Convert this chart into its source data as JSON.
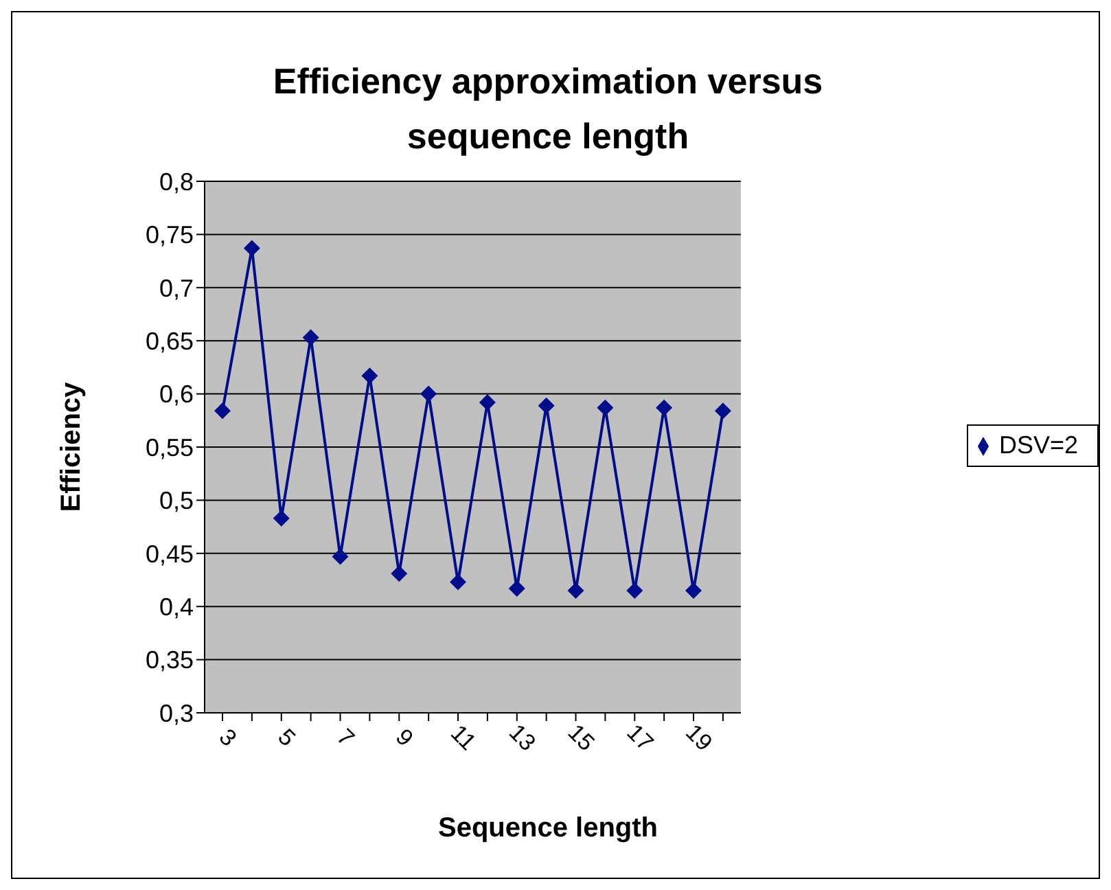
{
  "chart_data": {
    "type": "line",
    "title": "Efficiency approximation versus sequence length",
    "xlabel": "Sequence length",
    "ylabel": "Efficiency",
    "categories": [
      "3",
      null,
      "5",
      null,
      "7",
      null,
      "9",
      null,
      "11",
      null,
      "13",
      null,
      "15",
      null,
      "17",
      null,
      "19",
      null
    ],
    "series": [
      {
        "name": "DSV=2",
        "color": "#000e8c",
        "values": [
          0.584,
          0.737,
          0.483,
          0.653,
          0.447,
          0.617,
          0.431,
          0.6,
          0.423,
          0.592,
          0.417,
          0.589,
          0.415,
          0.587,
          0.415,
          0.587,
          0.415,
          0.584
        ]
      }
    ],
    "ylim": [
      0.3,
      0.8
    ],
    "yticks": [
      {
        "value": 0.3,
        "label": "0,3"
      },
      {
        "value": 0.35,
        "label": "0,35"
      },
      {
        "value": 0.4,
        "label": "0,4"
      },
      {
        "value": 0.45,
        "label": "0,45"
      },
      {
        "value": 0.5,
        "label": "0,5"
      },
      {
        "value": 0.55,
        "label": "0,55"
      },
      {
        "value": 0.6,
        "label": "0,6"
      },
      {
        "value": 0.65,
        "label": "0,65"
      },
      {
        "value": 0.7,
        "label": "0,7"
      },
      {
        "value": 0.75,
        "label": "0,75"
      },
      {
        "value": 0.8,
        "label": "0,8"
      }
    ],
    "grid": "y",
    "legend": "right",
    "marker": "diamond",
    "line_style": "solid"
  }
}
